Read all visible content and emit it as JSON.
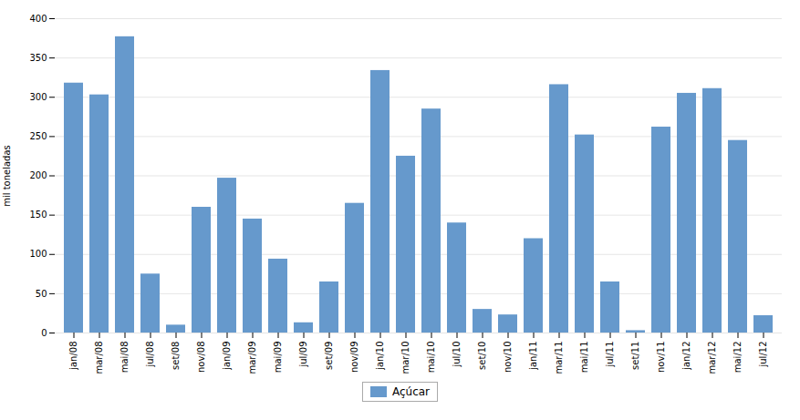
{
  "chart_data": {
    "type": "bar",
    "categories": [
      "jan/08",
      "mar/08",
      "mai/08",
      "jul/08",
      "set/08",
      "nov/08",
      "jan/09",
      "mar/09",
      "mai/09",
      "jul/09",
      "set/09",
      "nov/09",
      "jan/10",
      "mar/10",
      "mai/10",
      "jul/10",
      "set/10",
      "nov/10",
      "jan/11",
      "mar/11",
      "mai/11",
      "jul/11",
      "set/11",
      "nov/11",
      "jan/12",
      "mar/12",
      "mai/12",
      "jul/12"
    ],
    "series": [
      {
        "name": "Açúcar",
        "color": "#6699cc",
        "values": [
          318,
          303,
          377,
          75,
          10,
          160,
          197,
          145,
          94,
          13,
          65,
          165,
          334,
          225,
          285,
          140,
          30,
          23,
          120,
          316,
          252,
          65,
          3,
          262,
          305,
          311,
          245,
          22
        ]
      }
    ],
    "ylabel": "mil toneladas",
    "ylim": [
      0,
      400
    ],
    "yticks": [
      0,
      50,
      100,
      150,
      200,
      250,
      300,
      350,
      400
    ],
    "grid": true,
    "legend": "bottom"
  }
}
